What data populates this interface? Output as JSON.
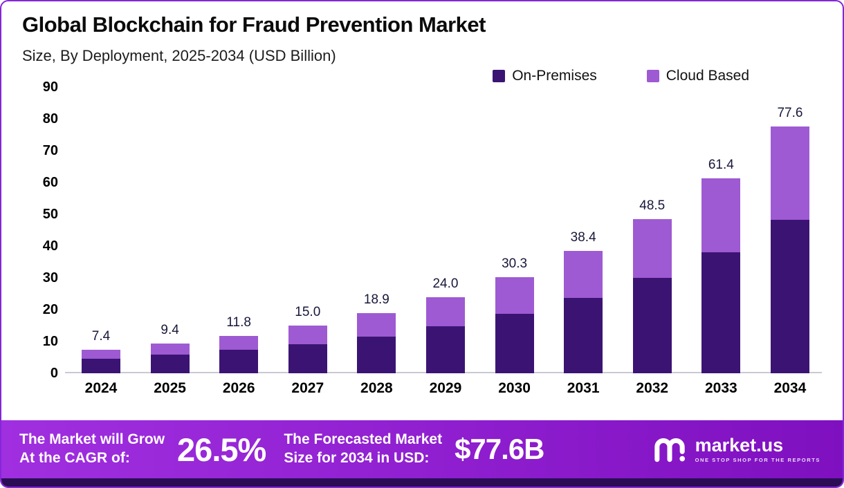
{
  "colors": {
    "on_premises": "#3b1473",
    "cloud_based": "#9e5ad2",
    "banner_gradient_start": "#a02fe0",
    "banner_gradient_end": "#7f10c0",
    "bottom_strip": "#2a0d55",
    "frame_border": "#8326d8",
    "baseline": "#c9c9d4"
  },
  "header": {
    "title": "Global Blockchain for Fraud Prevention Market",
    "subtitle": "Size, By Deployment, 2025-2034 (USD Billion)"
  },
  "legend": [
    {
      "label": "On-Premises",
      "color": "#3b1473"
    },
    {
      "label": "Cloud Based",
      "color": "#9e5ad2"
    }
  ],
  "chart_data": {
    "type": "bar",
    "stacked": true,
    "title": "Global Blockchain for Fraud Prevention Market Size, By Deployment, 2025-2034 (USD Billion)",
    "xlabel": "",
    "ylabel": "",
    "ylim": [
      0,
      90
    ],
    "yticks": [
      0,
      10,
      20,
      30,
      40,
      50,
      60,
      70,
      80,
      90
    ],
    "grid": false,
    "legend_position": "top-right",
    "categories": [
      "2024",
      "2025",
      "2026",
      "2027",
      "2028",
      "2029",
      "2030",
      "2031",
      "2032",
      "2033",
      "2034"
    ],
    "series": [
      {
        "name": "On-Premises",
        "color": "#3b1473",
        "values": [
          4.6,
          5.9,
          7.3,
          9.2,
          11.6,
          14.8,
          18.8,
          23.7,
          30.0,
          38.0,
          48.2
        ]
      },
      {
        "name": "Cloud Based",
        "color": "#9e5ad2",
        "values": [
          2.8,
          3.5,
          4.5,
          5.8,
          7.3,
          9.2,
          11.5,
          14.7,
          18.5,
          23.4,
          29.4
        ]
      }
    ],
    "totals": [
      7.4,
      9.4,
      11.8,
      15.0,
      18.9,
      24.0,
      30.3,
      38.4,
      48.5,
      61.4,
      77.6
    ],
    "total_labels": [
      "7.4",
      "9.4",
      "11.8",
      "15.0",
      "18.9",
      "24.0",
      "30.3",
      "38.4",
      "48.5",
      "61.4",
      "77.6"
    ]
  },
  "banner": {
    "cagr_label_line1": "The Market will Grow",
    "cagr_label_line2": "At the CAGR of:",
    "cagr_value": "26.5%",
    "forecast_label_line1": "The Forecasted Market",
    "forecast_label_line2": "Size for 2034 in USD:",
    "forecast_value": "$77.6B",
    "logo_text": "market.us",
    "logo_tagline": "ONE STOP SHOP FOR THE REPORTS"
  }
}
